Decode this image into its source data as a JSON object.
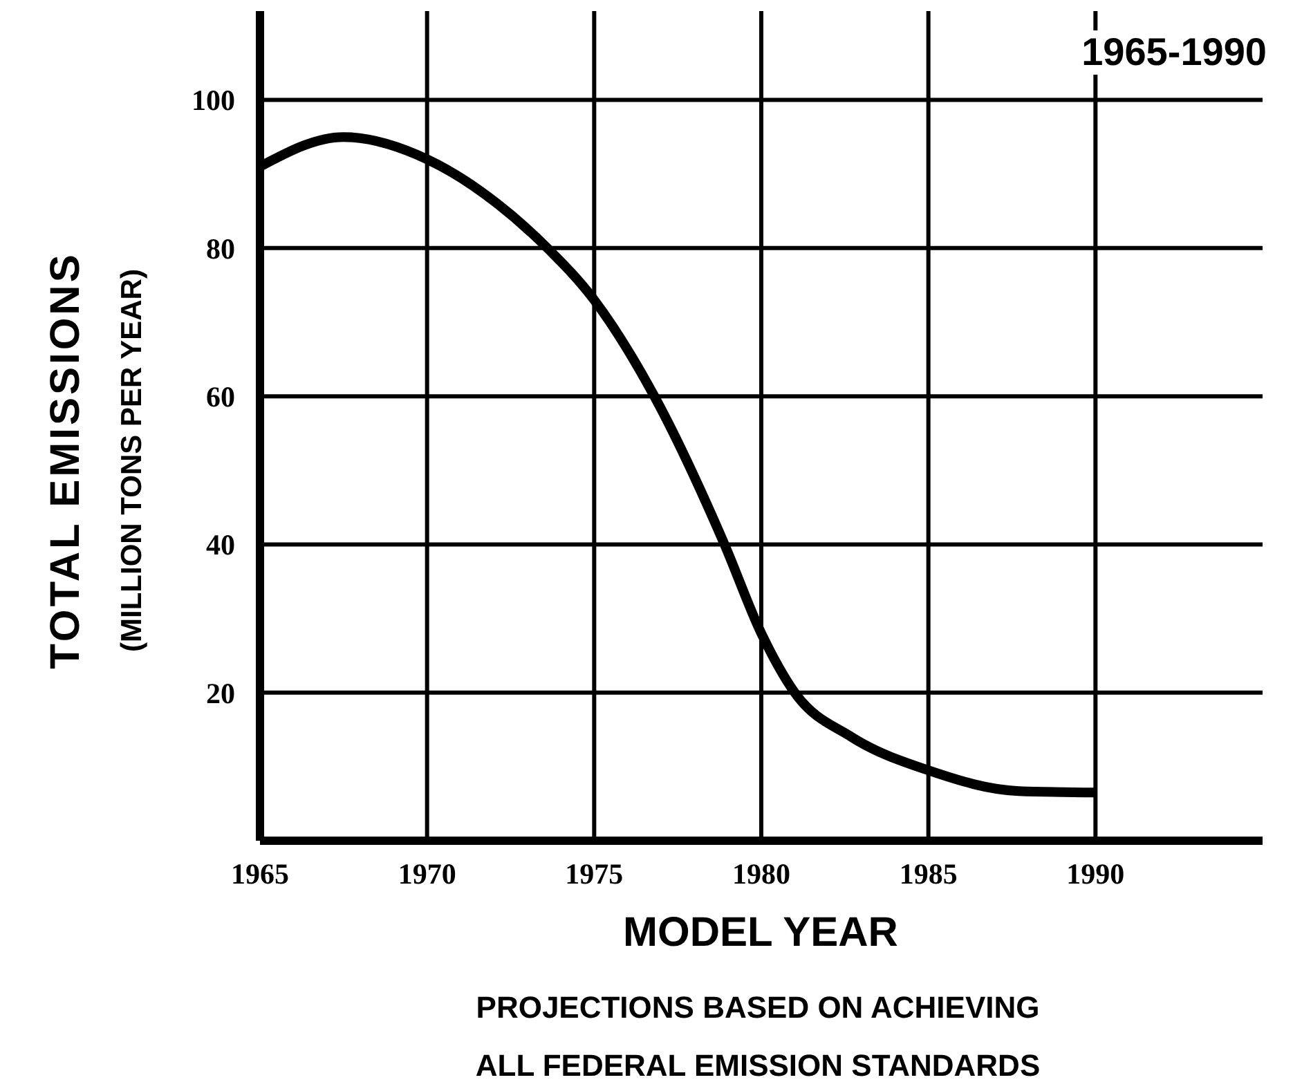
{
  "chart_data": {
    "type": "line",
    "title": "1965-1990",
    "xlabel": "MODEL YEAR",
    "ylabel": "TOTAL EMISSIONS",
    "subtitle": "(MILLION TONS PER YEAR)",
    "annotations": [
      "PROJECTIONS BASED ON ACHIEVING ALL FEDERAL EMISSION STANDARDS"
    ],
    "x": [
      1965,
      1967.5,
      1970,
      1972.1,
      1973.6,
      1975,
      1976.8,
      1978.9,
      1980,
      1981,
      1982.7,
      1985,
      1987.7,
      1990
    ],
    "series": [
      {
        "color": "#000000",
        "values": [
          91,
          95,
          92,
          86,
          80,
          73,
          60,
          40,
          28,
          20,
          14,
          9.5,
          6.7,
          6.5
        ]
      }
    ],
    "xlim": [
      1965,
      1995
    ],
    "xticks": [
      1965,
      1970,
      1975,
      1980,
      1985,
      1990
    ],
    "ylim": [
      0,
      112
    ],
    "yticks": [
      {
        "value": 0,
        "label": null
      },
      20,
      40,
      60,
      80,
      100
    ],
    "grid": true,
    "marker": "none",
    "line_style": "solid"
  }
}
